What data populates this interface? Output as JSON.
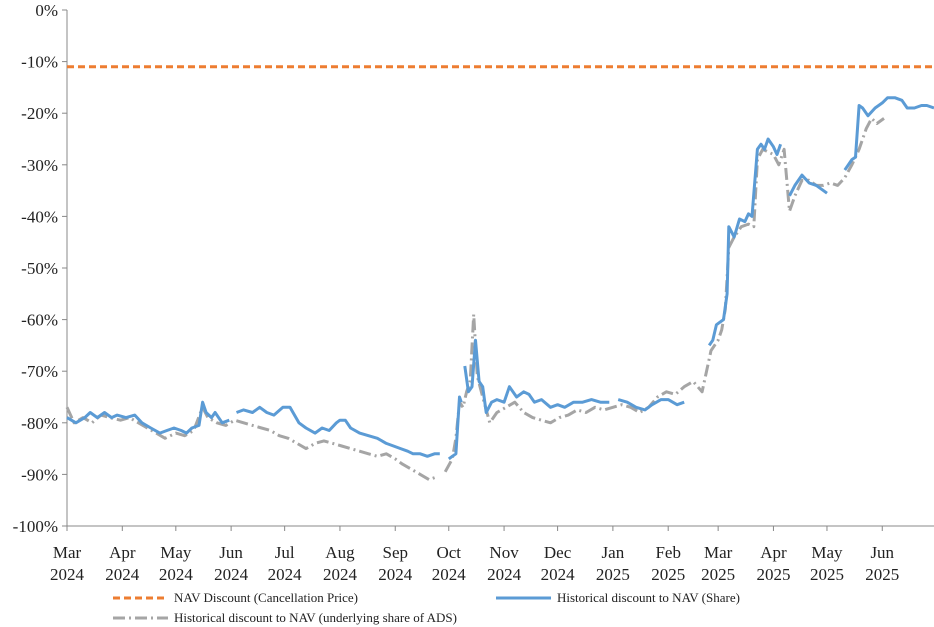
{
  "chart_data": {
    "type": "line",
    "title": "",
    "xlabel": "",
    "ylabel": "",
    "ylim": [
      -100,
      0
    ],
    "yticks": [
      0,
      -10,
      -20,
      -30,
      -40,
      -50,
      -60,
      -70,
      -80,
      -90,
      -100
    ],
    "ytick_labels": [
      "0%",
      "-10%",
      "-20%",
      "-30%",
      "-40%",
      "-50%",
      "-60%",
      "-70%",
      "-80%",
      "-90%",
      "-100%"
    ],
    "x_start": "2024-03-01",
    "x_end": "2025-06-30",
    "xticks": [
      {
        "date": "2024-03-01",
        "month": "Mar",
        "year": "2024"
      },
      {
        "date": "2024-04-01",
        "month": "Apr",
        "year": "2024"
      },
      {
        "date": "2024-05-01",
        "month": "May",
        "year": "2024"
      },
      {
        "date": "2024-06-01",
        "month": "Jun",
        "year": "2024"
      },
      {
        "date": "2024-07-01",
        "month": "Jul",
        "year": "2024"
      },
      {
        "date": "2024-08-01",
        "month": "Aug",
        "year": "2024"
      },
      {
        "date": "2024-09-01",
        "month": "Sep",
        "year": "2024"
      },
      {
        "date": "2024-10-01",
        "month": "Oct",
        "year": "2024"
      },
      {
        "date": "2024-11-01",
        "month": "Nov",
        "year": "2024"
      },
      {
        "date": "2024-12-01",
        "month": "Dec",
        "year": "2024"
      },
      {
        "date": "2025-01-01",
        "month": "Jan",
        "year": "2025"
      },
      {
        "date": "2025-02-01",
        "month": "Feb",
        "year": "2025"
      },
      {
        "date": "2025-03-01",
        "month": "Mar",
        "year": "2025"
      },
      {
        "date": "2025-04-01",
        "month": "Apr",
        "year": "2025"
      },
      {
        "date": "2025-05-01",
        "month": "May",
        "year": "2025"
      },
      {
        "date": "2025-06-01",
        "month": "Jun",
        "year": "2025"
      }
    ],
    "grid": false,
    "legend_position": "bottom",
    "series": [
      {
        "name": "NAV Discount (Cancellation Price)",
        "color": "#ed7d31",
        "style": "dashed",
        "points": [
          [
            "2024-03-01",
            -11
          ],
          [
            "2025-06-30",
            -11
          ]
        ]
      },
      {
        "name": "Historical discount to NAV (Share)",
        "color": "#5b9bd5",
        "style": "solid",
        "points": [
          [
            "2024-03-01",
            -79
          ],
          [
            "2024-03-06",
            -80
          ],
          [
            "2024-03-11",
            -79
          ],
          [
            "2024-03-14",
            -78
          ],
          [
            "2024-03-18",
            -79
          ],
          [
            "2024-03-22",
            -78
          ],
          [
            "2024-03-26",
            -79
          ],
          [
            "2024-03-29",
            -78.5
          ],
          [
            "2024-04-03",
            -79
          ],
          [
            "2024-04-08",
            -78.5
          ],
          [
            "2024-04-12",
            -80
          ],
          [
            "2024-04-17",
            -81
          ],
          [
            "2024-04-22",
            -82
          ],
          [
            "2024-04-26",
            -81.5
          ],
          [
            "2024-04-30",
            -81
          ],
          [
            "2024-05-04",
            -81.5
          ],
          [
            "2024-05-07",
            -82
          ],
          [
            "2024-05-10",
            -81
          ],
          [
            "2024-05-14",
            -80.5
          ],
          [
            "2024-05-16",
            -76
          ],
          [
            "2024-05-18",
            -78
          ],
          [
            "2024-05-21",
            -79
          ],
          [
            "2024-05-23",
            -78
          ],
          [
            "2024-05-27",
            -80
          ],
          [
            "2024-05-31",
            -79.5
          ],
          [
            null,
            null
          ],
          [
            "2024-06-04",
            -78
          ],
          [
            "2024-06-08",
            -77.5
          ],
          [
            "2024-06-13",
            -78
          ],
          [
            "2024-06-17",
            -77
          ],
          [
            "2024-06-21",
            -78
          ],
          [
            "2024-06-25",
            -78.5
          ],
          [
            "2024-06-30",
            -77
          ],
          [
            "2024-07-04",
            -77
          ],
          [
            "2024-07-09",
            -80
          ],
          [
            "2024-07-13",
            -81
          ],
          [
            "2024-07-18",
            -82
          ],
          [
            "2024-07-22",
            -81
          ],
          [
            "2024-07-26",
            -81.5
          ],
          [
            "2024-07-30",
            -80
          ],
          [
            "2024-08-01",
            -79.5
          ],
          [
            "2024-08-04",
            -79.5
          ],
          [
            "2024-08-07",
            -81
          ],
          [
            "2024-08-12",
            -82
          ],
          [
            "2024-08-17",
            -82.5
          ],
          [
            "2024-08-22",
            -83
          ],
          [
            "2024-08-27",
            -84
          ],
          [
            "2024-08-31",
            -84.5
          ],
          [
            "2024-09-04",
            -85
          ],
          [
            "2024-09-08",
            -85.5
          ],
          [
            "2024-09-11",
            -86
          ],
          [
            "2024-09-15",
            -86
          ],
          [
            "2024-09-19",
            -86.5
          ],
          [
            "2024-09-23",
            -86
          ],
          [
            "2024-09-26",
            -86
          ],
          [
            null,
            null
          ],
          [
            "2024-10-01",
            -87
          ],
          [
            "2024-10-03",
            -86.5
          ],
          [
            "2024-10-05",
            -86
          ],
          [
            "2024-10-07",
            -75
          ],
          [
            "2024-10-08",
            -76
          ],
          [
            null,
            null
          ],
          [
            "2024-10-10",
            -69
          ],
          [
            "2024-10-12",
            -74
          ],
          [
            "2024-10-14",
            -73
          ],
          [
            "2024-10-16",
            -64
          ],
          [
            "2024-10-18",
            -72
          ],
          [
            "2024-10-20",
            -73
          ],
          [
            "2024-10-22",
            -78
          ],
          [
            "2024-10-25",
            -76
          ],
          [
            "2024-10-28",
            -75.5
          ],
          [
            "2024-11-01",
            -76
          ],
          [
            "2024-11-04",
            -73
          ],
          [
            "2024-11-08",
            -75
          ],
          [
            "2024-11-12",
            -74
          ],
          [
            "2024-11-15",
            -74.5
          ],
          [
            "2024-11-18",
            -76
          ],
          [
            "2024-11-22",
            -75.5
          ],
          [
            "2024-11-27",
            -77
          ],
          [
            "2024-12-01",
            -76.5
          ],
          [
            "2024-12-05",
            -77
          ],
          [
            "2024-12-10",
            -76
          ],
          [
            "2024-12-15",
            -76
          ],
          [
            "2024-12-20",
            -75.5
          ],
          [
            "2024-12-25",
            -76
          ],
          [
            "2024-12-30",
            -76
          ],
          [
            null,
            null
          ],
          [
            "2025-01-04",
            -75.5
          ],
          [
            "2025-01-09",
            -76
          ],
          [
            "2025-01-14",
            -77
          ],
          [
            "2025-01-19",
            -77.5
          ],
          [
            "2025-01-23",
            -76.5
          ],
          [
            "2025-01-28",
            -75.5
          ],
          [
            "2025-02-01",
            -75.5
          ],
          [
            "2025-02-06",
            -76.5
          ],
          [
            "2025-02-10",
            -76
          ],
          [
            null,
            null
          ],
          [
            "2025-02-24",
            -65
          ],
          [
            "2025-02-26",
            -64
          ],
          [
            "2025-02-28",
            -61
          ],
          [
            "2025-03-02",
            -60.5
          ],
          [
            "2025-03-04",
            -60
          ],
          [
            "2025-03-06",
            -55
          ],
          [
            "2025-03-07",
            -42
          ],
          [
            "2025-03-10",
            -44
          ],
          [
            "2025-03-13",
            -40.5
          ],
          [
            "2025-03-16",
            -41
          ],
          [
            "2025-03-18",
            -39.5
          ],
          [
            "2025-03-20",
            -40
          ],
          [
            "2025-03-23",
            -27
          ],
          [
            "2025-03-25",
            -26
          ],
          [
            "2025-03-27",
            -27
          ],
          [
            "2025-03-29",
            -25
          ],
          [
            "2025-04-01",
            -26.5
          ],
          [
            "2025-04-03",
            -28
          ],
          [
            "2025-04-05",
            -26
          ],
          [
            null,
            null
          ],
          [
            "2025-04-10",
            -36
          ],
          [
            "2025-04-13",
            -34
          ],
          [
            "2025-04-17",
            -32
          ],
          [
            "2025-04-21",
            -33.5
          ],
          [
            "2025-04-25",
            -34
          ],
          [
            "2025-04-29",
            -35
          ],
          [
            "2025-05-01",
            -35.5
          ],
          [
            null,
            null
          ],
          [
            "2025-05-11",
            -31
          ],
          [
            "2025-05-15",
            -29
          ],
          [
            "2025-05-17",
            -28.5
          ],
          [
            "2025-05-19",
            -18.5
          ],
          [
            "2025-05-21",
            -19
          ],
          [
            "2025-05-24",
            -20.5
          ],
          [
            "2025-05-28",
            -19
          ],
          [
            "2025-06-01",
            -18
          ],
          [
            "2025-06-04",
            -17
          ],
          [
            "2025-06-08",
            -17
          ],
          [
            "2025-06-12",
            -17.5
          ],
          [
            "2025-06-15",
            -19
          ],
          [
            "2025-06-19",
            -19
          ],
          [
            "2025-06-23",
            -18.5
          ],
          [
            "2025-06-26",
            -18.5
          ],
          [
            "2025-06-30",
            -19
          ]
        ]
      },
      {
        "name": "Historical discount to NAV (underlying share of ADS)",
        "color": "#a5a5a5",
        "style": "dashdot",
        "points": [
          [
            "2024-03-01",
            -77
          ],
          [
            "2024-03-05",
            -80
          ],
          [
            "2024-03-10",
            -79
          ],
          [
            "2024-03-15",
            -80
          ],
          [
            "2024-03-20",
            -78.5
          ],
          [
            "2024-03-25",
            -79
          ],
          [
            "2024-03-31",
            -79.5
          ],
          [
            "2024-04-05",
            -79
          ],
          [
            "2024-04-10",
            -80
          ],
          [
            "2024-04-15",
            -81
          ],
          [
            "2024-04-20",
            -82
          ],
          [
            "2024-04-25",
            -83
          ],
          [
            "2024-05-01",
            -82
          ],
          [
            "2024-05-06",
            -82.5
          ],
          [
            "2024-05-11",
            -81.5
          ],
          [
            "2024-05-16",
            -77
          ],
          [
            "2024-05-19",
            -79
          ],
          [
            "2024-05-24",
            -80
          ],
          [
            "2024-05-29",
            -80.5
          ],
          [
            "2024-06-03",
            -79.5
          ],
          [
            "2024-06-08",
            -80
          ],
          [
            "2024-06-13",
            -80.5
          ],
          [
            "2024-06-18",
            -81
          ],
          [
            "2024-06-23",
            -81.5
          ],
          [
            "2024-06-28",
            -82.5
          ],
          [
            "2024-07-03",
            -83
          ],
          [
            "2024-07-08",
            -84
          ],
          [
            "2024-07-13",
            -85
          ],
          [
            "2024-07-18",
            -84
          ],
          [
            "2024-07-23",
            -83.5
          ],
          [
            "2024-07-28",
            -84
          ],
          [
            "2024-08-02",
            -84.5
          ],
          [
            "2024-08-07",
            -85
          ],
          [
            "2024-08-12",
            -85.5
          ],
          [
            "2024-08-17",
            -86
          ],
          [
            "2024-08-22",
            -86.5
          ],
          [
            "2024-08-27",
            -86
          ],
          [
            "2024-09-01",
            -87
          ],
          [
            "2024-09-05",
            -88
          ],
          [
            "2024-09-10",
            -89
          ],
          [
            "2024-09-15",
            -90
          ],
          [
            "2024-09-20",
            -91
          ],
          [
            "2024-09-24",
            -90.5
          ],
          [
            null,
            null
          ],
          [
            "2024-09-29",
            -89.5
          ],
          [
            "2024-10-03",
            -87
          ],
          [
            "2024-10-05",
            -83
          ],
          [
            "2024-10-07",
            -76
          ],
          [
            "2024-10-09",
            -77
          ],
          [
            "2024-10-11",
            -74
          ],
          [
            "2024-10-13",
            -72
          ],
          [
            "2024-10-15",
            -59
          ],
          [
            "2024-10-17",
            -71
          ],
          [
            "2024-10-20",
            -75
          ],
          [
            "2024-10-24",
            -80
          ],
          [
            "2024-10-28",
            -78
          ],
          [
            "2024-11-02",
            -77
          ],
          [
            "2024-11-07",
            -76
          ],
          [
            "2024-11-12",
            -78
          ],
          [
            "2024-11-17",
            -79
          ],
          [
            "2024-11-22",
            -79.5
          ],
          [
            "2024-11-27",
            -80
          ],
          [
            "2024-12-02",
            -79
          ],
          [
            "2024-12-07",
            -78.5
          ],
          [
            "2024-12-12",
            -77.5
          ],
          [
            "2024-12-17",
            -78
          ],
          [
            "2024-12-22",
            -77
          ],
          [
            "2024-12-27",
            -77.5
          ],
          [
            "2025-01-01",
            -77
          ],
          [
            "2025-01-06",
            -76.5
          ],
          [
            "2025-01-11",
            -77
          ],
          [
            "2025-01-16",
            -78
          ],
          [
            "2025-01-21",
            -77
          ],
          [
            "2025-01-26",
            -75
          ],
          [
            "2025-01-31",
            -74
          ],
          [
            "2025-02-05",
            -74.5
          ],
          [
            "2025-02-10",
            -73
          ],
          [
            "2025-02-15",
            -72
          ],
          [
            "2025-02-20",
            -74
          ],
          [
            "2025-02-25",
            -66
          ],
          [
            "2025-03-01",
            -64
          ],
          [
            "2025-03-03",
            -62
          ],
          [
            "2025-03-05",
            -58
          ],
          [
            "2025-03-07",
            -46
          ],
          [
            "2025-03-10",
            -44
          ],
          [
            "2025-03-14",
            -42
          ],
          [
            "2025-03-18",
            -41.5
          ],
          [
            "2025-03-21",
            -42
          ],
          [
            "2025-03-23",
            -29
          ],
          [
            "2025-03-26",
            -27
          ],
          [
            "2025-03-29",
            -27.5
          ],
          [
            "2025-04-01",
            -28
          ],
          [
            "2025-04-04",
            -30
          ],
          [
            "2025-04-07",
            -27
          ],
          [
            "2025-04-10",
            -39
          ],
          [
            "2025-04-13",
            -36
          ],
          [
            "2025-04-17",
            -33
          ],
          [
            "2025-04-21",
            -33
          ],
          [
            "2025-04-25",
            -34
          ],
          [
            "2025-04-29",
            -34
          ],
          [
            "2025-05-03",
            -33.5
          ],
          [
            "2025-05-07",
            -34
          ],
          [
            "2025-05-11",
            -32.5
          ],
          [
            "2025-05-15",
            -30
          ],
          [
            "2025-05-19",
            -27
          ],
          [
            "2025-05-23",
            -23
          ],
          [
            "2025-05-26",
            -21
          ],
          [
            "2025-05-29",
            -22
          ],
          [
            "2025-06-02",
            -21
          ]
        ]
      }
    ]
  }
}
